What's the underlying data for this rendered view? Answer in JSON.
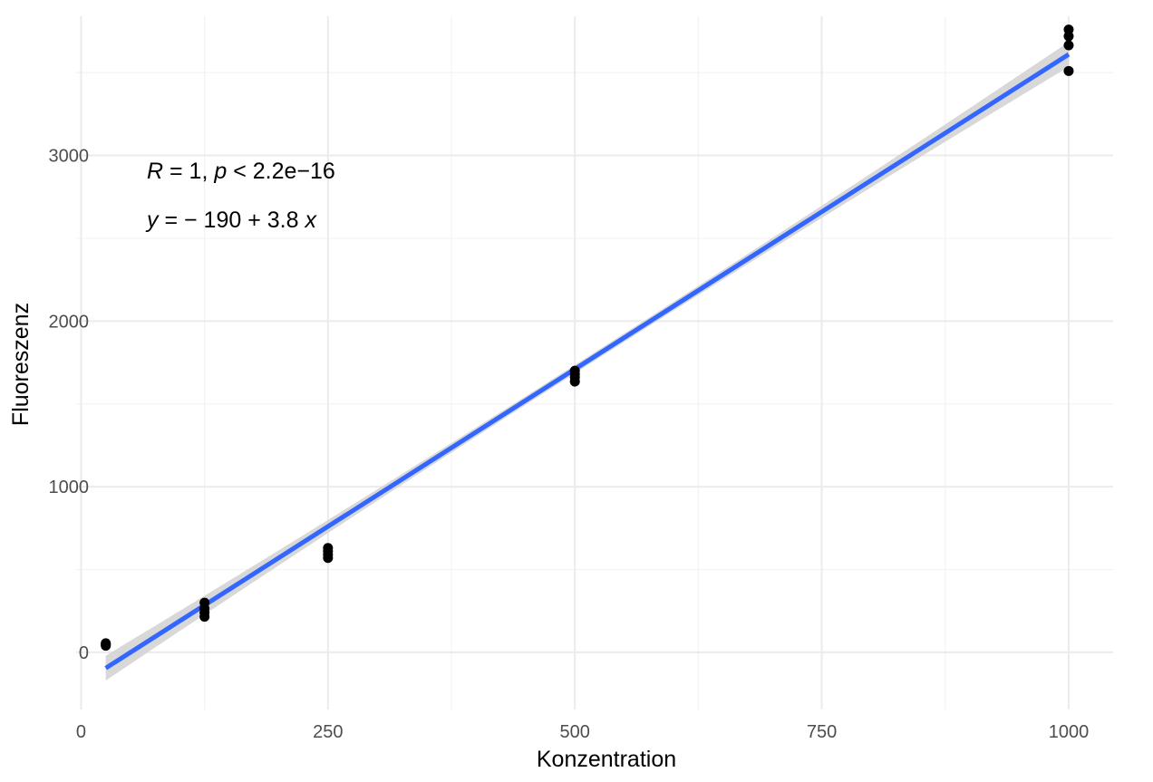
{
  "chart_data": {
    "type": "scatter",
    "xlabel": "Konzentration",
    "ylabel": "Fluoreszenz",
    "xlim": [
      -5,
      1045
    ],
    "ylim": [
      -345,
      3840
    ],
    "x_ticks": [
      0,
      250,
      500,
      750,
      1000
    ],
    "x_tick_labels": [
      "0",
      "250",
      "500",
      "750",
      "1000"
    ],
    "y_ticks": [
      0,
      1000,
      2000,
      3000
    ],
    "y_tick_labels": [
      "0",
      "1000",
      "2000",
      "3000"
    ],
    "grid": true,
    "points": [
      {
        "x": 25,
        "y": 40
      },
      {
        "x": 25,
        "y": 45
      },
      {
        "x": 25,
        "y": 50
      },
      {
        "x": 25,
        "y": 55
      },
      {
        "x": 125,
        "y": 215
      },
      {
        "x": 125,
        "y": 240
      },
      {
        "x": 125,
        "y": 265
      },
      {
        "x": 125,
        "y": 300
      },
      {
        "x": 250,
        "y": 570
      },
      {
        "x": 250,
        "y": 590
      },
      {
        "x": 250,
        "y": 610
      },
      {
        "x": 250,
        "y": 630
      },
      {
        "x": 500,
        "y": 1635
      },
      {
        "x": 500,
        "y": 1660
      },
      {
        "x": 500,
        "y": 1680
      },
      {
        "x": 500,
        "y": 1700
      },
      {
        "x": 1000,
        "y": 3510
      },
      {
        "x": 1000,
        "y": 3665
      },
      {
        "x": 1000,
        "y": 3720
      },
      {
        "x": 1000,
        "y": 3760
      }
    ],
    "point_color": "#000000",
    "regression": {
      "intercept": -190,
      "slope": 3.8,
      "x_range": [
        25,
        1000
      ],
      "color": "#3366FF",
      "ci_color": "#d4d4d4",
      "ci_halfwidth_ends": 75,
      "ci_halfwidth_center": 25
    },
    "annotations": {
      "line1": {
        "R": "R",
        "eq1": " = 1, ",
        "p": "p",
        "rest": " < 2.2e−16"
      },
      "line2": {
        "y": "y",
        "eq": " = − 190 + 3.8 ",
        "x": "x"
      }
    }
  }
}
